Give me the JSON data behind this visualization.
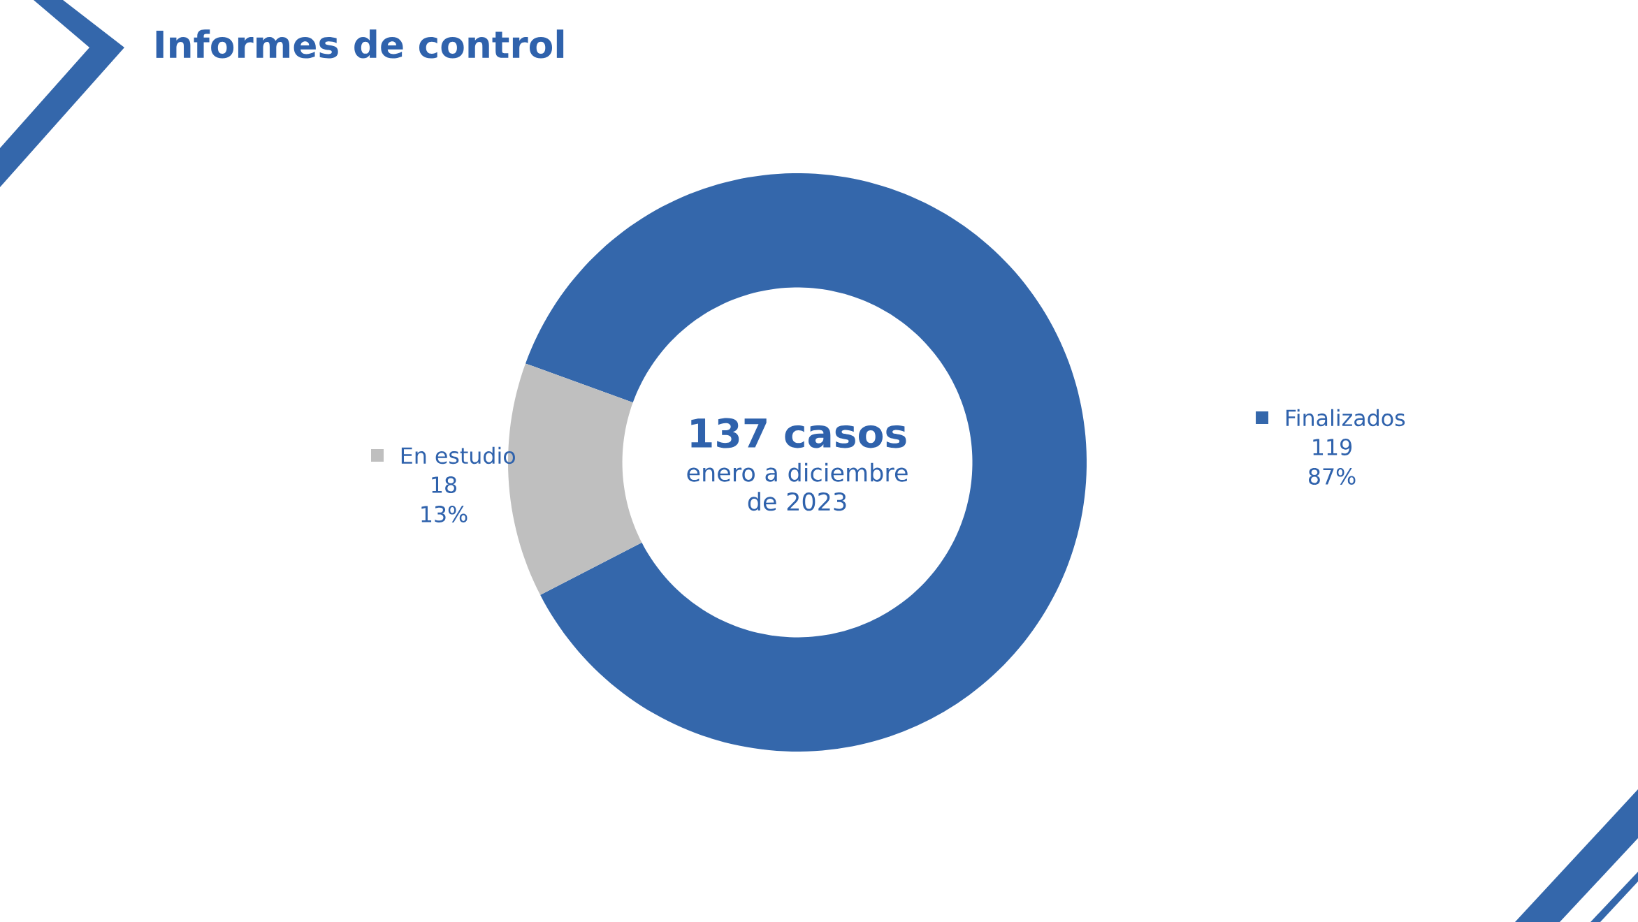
{
  "chart_data": {
    "type": "donut",
    "title": "Informes de control",
    "categories": [
      "Finalizados",
      "En estudio"
    ],
    "values": [
      119,
      18
    ],
    "colors": [
      "#3467ab",
      "#bfbfbf"
    ],
    "legend": "right",
    "value_labels": [
      "119",
      "18"
    ],
    "annotations": [
      "137 casos",
      "enero a diciembre de 2023",
      {
        "text": "87%",
        "x": "Finalizados"
      },
      {
        "text": "13%",
        "x": "En estudio"
      }
    ]
  }
}
